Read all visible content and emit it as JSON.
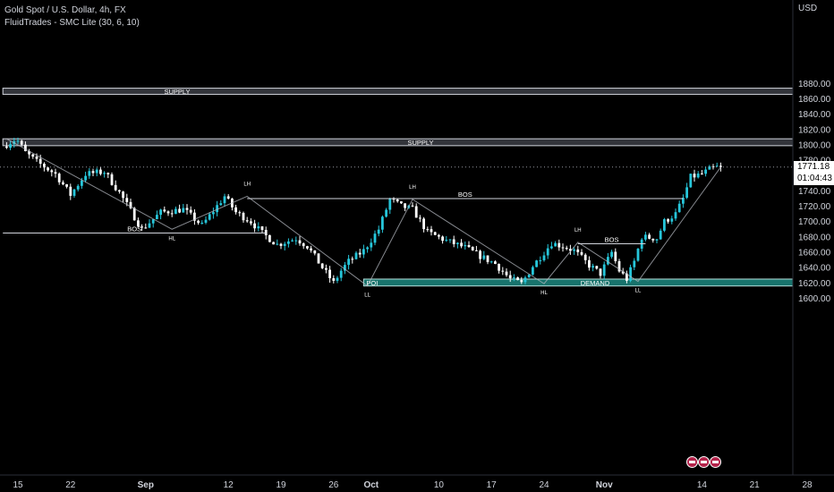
{
  "legend": {
    "symbol": "Gold Spot / U.S. Dollar, 4h, FX",
    "indicator": "FluidTrades - SMC Lite",
    "params": "(30, 6, 10)"
  },
  "axis": {
    "currency": "USD"
  },
  "price_tag": {
    "price": "1771.18",
    "countdown": "01:04:43"
  },
  "event_flags": 3,
  "colors": {
    "background": "#000000",
    "candle_up": "#26c6da",
    "candle_down": "#ffffff",
    "supply_zone": "#5d606b",
    "demand_zone": "#1b7f78",
    "structure_line": "#b2b5be",
    "text": "#d1d4dc"
  },
  "chart_data": {
    "type": "candlestick",
    "title": "Gold Spot / U.S. Dollar, 4h, FX",
    "ylim": [
      1592,
      1888
    ],
    "y_ticks": [
      1600,
      1620,
      1640,
      1660,
      1680,
      1700,
      1720,
      1740,
      1760,
      1780,
      1800,
      1820,
      1840,
      1860,
      1880
    ],
    "x_ticks": [
      {
        "label": "15",
        "t": 0
      },
      {
        "label": "22",
        "t": 7
      },
      {
        "label": "Sep",
        "t": 17
      },
      {
        "label": "12",
        "t": 28
      },
      {
        "label": "19",
        "t": 35
      },
      {
        "label": "26",
        "t": 42
      },
      {
        "label": "Oct",
        "t": 47
      },
      {
        "label": "10",
        "t": 56
      },
      {
        "label": "17",
        "t": 63
      },
      {
        "label": "24",
        "t": 70
      },
      {
        "label": "Nov",
        "t": 78
      },
      {
        "label": "14",
        "t": 91
      },
      {
        "label": "21",
        "t": 98
      },
      {
        "label": "28",
        "t": 105
      }
    ],
    "last_price": 1771.18,
    "path": [
      [
        -1.5,
        1798
      ],
      [
        0.3,
        1808
      ],
      [
        1.5,
        1790
      ],
      [
        3,
        1778
      ],
      [
        5.5,
        1762
      ],
      [
        7.5,
        1735
      ],
      [
        9.5,
        1762
      ],
      [
        12,
        1765
      ],
      [
        14,
        1738
      ],
      [
        17,
        1690
      ],
      [
        19.5,
        1712
      ],
      [
        22.5,
        1716
      ],
      [
        25,
        1695
      ],
      [
        28,
        1733
      ],
      [
        29.5,
        1712
      ],
      [
        31.5,
        1700
      ],
      [
        33,
        1685
      ],
      [
        35,
        1670
      ],
      [
        37.5,
        1678
      ],
      [
        39,
        1668
      ],
      [
        41,
        1640
      ],
      [
        42.5,
        1620
      ],
      [
        43.5,
        1636
      ],
      [
        44.5,
        1648
      ],
      [
        46.5,
        1662
      ],
      [
        48.5,
        1690
      ],
      [
        50,
        1729
      ],
      [
        51.5,
        1720
      ],
      [
        53,
        1716
      ],
      [
        55,
        1686
      ],
      [
        57.5,
        1675
      ],
      [
        60,
        1666
      ],
      [
        62,
        1655
      ],
      [
        64,
        1645
      ],
      [
        66,
        1625
      ],
      [
        67.5,
        1619
      ],
      [
        69,
        1642
      ],
      [
        70.5,
        1660
      ],
      [
        71.5,
        1672
      ],
      [
        73,
        1668
      ],
      [
        74.5,
        1662
      ],
      [
        76.5,
        1643
      ],
      [
        78,
        1632
      ],
      [
        79.5,
        1660
      ],
      [
        80.5,
        1636
      ],
      [
        81.5,
        1625
      ],
      [
        82.5,
        1648
      ],
      [
        83.5,
        1680
      ],
      [
        85.5,
        1678
      ],
      [
        86.5,
        1700
      ],
      [
        88,
        1710
      ],
      [
        89,
        1730
      ],
      [
        90,
        1758
      ],
      [
        91.5,
        1762
      ],
      [
        92.5,
        1768
      ],
      [
        93.5,
        1771
      ]
    ],
    "zones": [
      {
        "type": "supply",
        "label": "SUPPLY",
        "t_start": -2,
        "t_end": 111,
        "price_low": 1866,
        "price_high": 1874
      },
      {
        "type": "supply",
        "label": "SUPPLY",
        "t_start": -2,
        "t_end": 111,
        "price_low": 1799,
        "price_high": 1808
      },
      {
        "type": "demand",
        "label": "POI",
        "t_start": 46,
        "t_end": 111,
        "price_low": 1616,
        "price_high": 1625
      },
      {
        "type": "demand",
        "label": "DEMAND",
        "t_start": 46,
        "t_end": 111,
        "price_low": 1616,
        "price_high": 1625
      }
    ],
    "bos_lines": [
      {
        "label": "BOS",
        "t_start": -2,
        "t_end": 33,
        "price": 1685
      },
      {
        "label": "BOS",
        "t_start": 30.5,
        "t_end": 88.5,
        "price": 1730
      },
      {
        "label": "BOS",
        "t_start": 74.5,
        "t_end": 83.5,
        "price": 1671
      }
    ],
    "swing_labels": [
      {
        "label": "HL",
        "t": 20.5,
        "price": 1690,
        "position": "below"
      },
      {
        "label": "LH",
        "t": 30.5,
        "price": 1733,
        "position": "above"
      },
      {
        "label": "LL",
        "t": 46.5,
        "price": 1616,
        "position": "below"
      },
      {
        "label": "LH",
        "t": 52.5,
        "price": 1729,
        "position": "above"
      },
      {
        "label": "HL",
        "t": 70,
        "price": 1619,
        "position": "below"
      },
      {
        "label": "LH",
        "t": 74.5,
        "price": 1673,
        "position": "above"
      },
      {
        "label": "LL",
        "t": 82.5,
        "price": 1622,
        "position": "below"
      }
    ],
    "swing_path": [
      [
        -1.5,
        1808
      ],
      [
        20.5,
        1690
      ],
      [
        30.5,
        1733
      ],
      [
        46.5,
        1616
      ],
      [
        52.5,
        1729
      ],
      [
        70,
        1619
      ],
      [
        74.5,
        1673
      ],
      [
        82.5,
        1622
      ],
      [
        93.5,
        1771
      ]
    ]
  }
}
